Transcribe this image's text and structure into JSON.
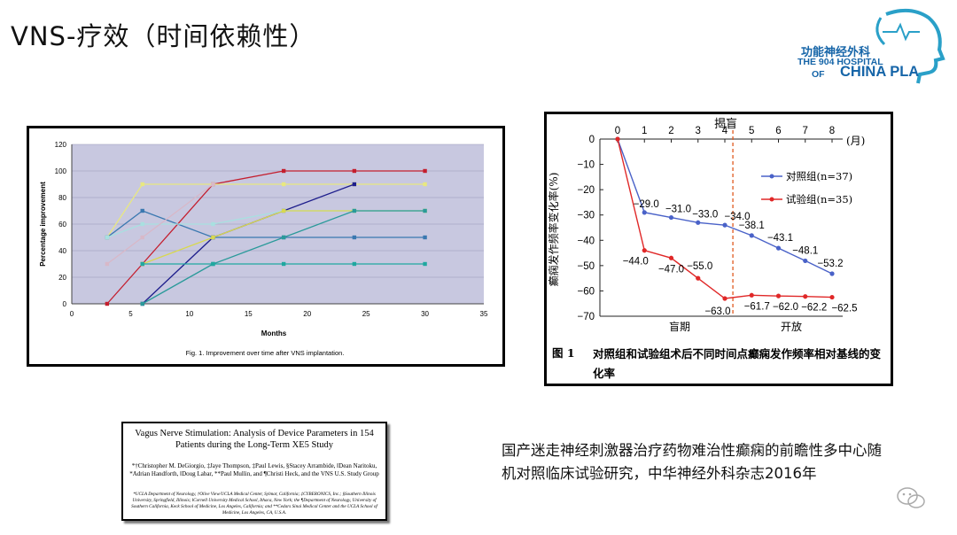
{
  "slide": {
    "title": "VNS-疗效（时间依赖性）",
    "citation": "国产迷走神经刺激器治疗药物难治性癫痫的前瞻性多中心随机对照临床试验研究，中华神经外科杂志2016年"
  },
  "logo": {
    "line1": "功能神经外科",
    "line2": "THE 904 HOSPITAL",
    "line3_of": "OF",
    "line3_name": "CHINA PLA",
    "color": "#1665a8"
  },
  "paper": {
    "title": "Vagus Nerve Stimulation: Analysis of Device Parameters in 154 Patients during the Long-Term XE5 Study",
    "authors": "*†Christopher M. DeGiorgio, ‡Jaye Thompson, ‡Paul Lewis, §Stacey Arrambide, ‖Dean Naritoku, *Adrian Handforth, ‖Doug Labar, **Paul Mullin, and ¶Christi Heck, and the VNS U.S. Study Group",
    "affiliations": "*UCLA Department of Neurology, †Olive View/UCLA Medical Center, Sylmar, California; ‡CYBERONICS, Inc.; §Southern Illinois University, Springfield, Illinois; ‖Cornell University Medical School, Ithaca, New York; the ¶Department of Neurology, University of Southern California, Keck School of Medicine, Los Angeles, California; and **Cedars Sinai Medical Center and the UCLA School of Medicine, Los Angeles, CA, U.S.A."
  },
  "chart_data": [
    {
      "type": "line",
      "title": "",
      "xlabel": "Months",
      "ylabel": "Percentage improvement",
      "caption": "Fig. 1. Improvement over time after VNS implantation.",
      "xlim": [
        0,
        35
      ],
      "ylim": [
        0,
        120
      ],
      "xticks": [
        0,
        5,
        10,
        15,
        20,
        25,
        30,
        35
      ],
      "yticks": [
        0,
        20,
        40,
        60,
        80,
        100,
        120
      ],
      "grid": true,
      "plot_background": "#c8c8e0",
      "series": [
        {
          "color": "#c41e2e",
          "x": [
            3,
            6,
            12,
            18,
            24,
            30
          ],
          "y": [
            0,
            30,
            90,
            100,
            100,
            100
          ]
        },
        {
          "color": "#e8e880",
          "x": [
            3,
            6,
            12,
            18,
            24,
            30
          ],
          "y": [
            50,
            90,
            90,
            90,
            90,
            90
          ]
        },
        {
          "color": "#1e1e8c",
          "x": [
            6,
            12,
            18,
            24
          ],
          "y": [
            0,
            50,
            70,
            90
          ]
        },
        {
          "color": "#3a78b0",
          "x": [
            3,
            6,
            12,
            18,
            24,
            30
          ],
          "y": [
            50,
            70,
            50,
            50,
            50,
            50
          ]
        },
        {
          "color": "#a8e0e0",
          "x": [
            3,
            6,
            12,
            18,
            24,
            30
          ],
          "y": [
            50,
            60,
            60,
            70,
            70,
            70
          ]
        },
        {
          "color": "#d8d850",
          "x": [
            6,
            12,
            18,
            24,
            30
          ],
          "y": [
            30,
            50,
            70,
            70,
            70
          ]
        },
        {
          "color": "#d8b8c8",
          "x": [
            3,
            6,
            12
          ],
          "y": [
            30,
            50,
            90
          ]
        },
        {
          "color": "#2a9a9a",
          "x": [
            6,
            12,
            18,
            24,
            30
          ],
          "y": [
            0,
            30,
            50,
            70,
            70
          ]
        },
        {
          "color": "#20a8a0",
          "x": [
            6,
            12,
            18,
            24,
            30
          ],
          "y": [
            30,
            30,
            30,
            30,
            30
          ]
        }
      ]
    },
    {
      "type": "line",
      "title": "",
      "xlabel": "(月)",
      "ylabel": "癫痫发作频率变化率(%)",
      "caption_label": "图 1",
      "caption": "对照组和试验组术后不同时间点癫痫发作频率相对基线的变化率",
      "xlim": [
        0,
        8
      ],
      "ylim": [
        -70,
        0
      ],
      "xticks": [
        0,
        1,
        2,
        3,
        4,
        5,
        6,
        7,
        8
      ],
      "yticks": [
        0,
        -10,
        -20,
        -30,
        -40,
        -50,
        -60,
        -70
      ],
      "unblinding_label": "揭盲",
      "unblinding_x": 4.3,
      "phase_labels": [
        "盲期",
        "开放"
      ],
      "legend_position": "top-right",
      "series": [
        {
          "name": "对照组(n=37)",
          "color": "#4a62c8",
          "x": [
            0,
            1,
            2,
            3,
            4,
            5,
            6,
            7,
            8
          ],
          "y": [
            0,
            -29.0,
            -31.0,
            -33.0,
            -34.0,
            -38.1,
            -43.1,
            -48.1,
            -53.2
          ],
          "labels": [
            "",
            "−29.0",
            "−31.0",
            "−33.0",
            "−34.0",
            "−38.1",
            "−43.1",
            "−48.1",
            "−53.2"
          ]
        },
        {
          "name": "试验组(n=35)",
          "color": "#e02828",
          "x": [
            0,
            1,
            2,
            3,
            4,
            5,
            6,
            7,
            8
          ],
          "y": [
            0,
            -44.0,
            -47.0,
            -55.0,
            -63.0,
            -61.7,
            -62.0,
            -62.2,
            -62.5
          ],
          "labels": [
            "",
            "−44.0",
            "−47.0",
            "−55.0",
            "−63.0",
            "−61.7",
            "−62.0",
            "−62.2",
            "−62.5"
          ]
        }
      ]
    }
  ]
}
